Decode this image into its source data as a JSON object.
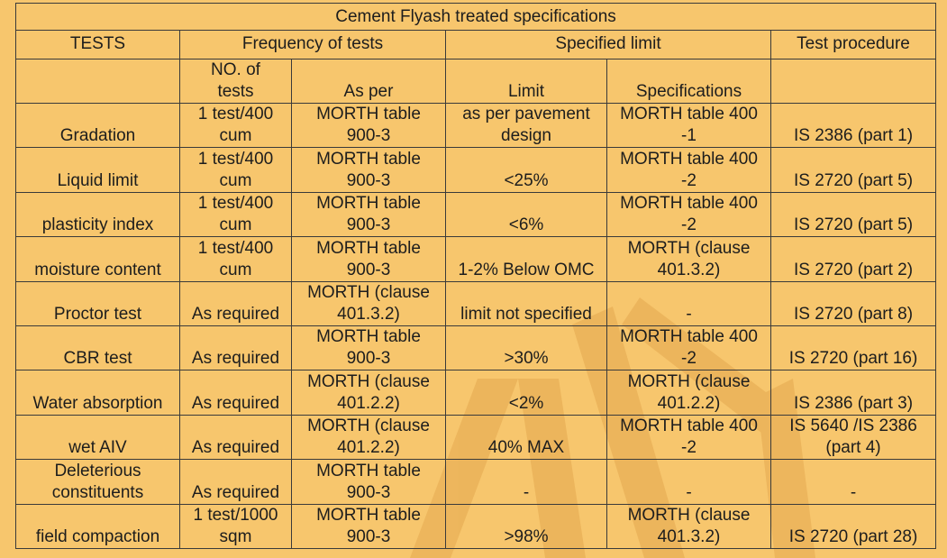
{
  "title": "Cement Flyash treated  specifications",
  "headers": {
    "tests": "TESTS",
    "frequency": "Frequency of tests",
    "specified_limit": "Specified limit",
    "test_procedure": "Test procedure"
  },
  "subheaders": {
    "no_of_tests": "NO. of\ntests",
    "as_per": "As per",
    "limit": "Limit",
    "specifications": "Specifications",
    "blank_1": "",
    "blank_2": ""
  },
  "rows": [
    {
      "test": "Gradation",
      "no_of_tests": "1 test/400\ncum",
      "as_per": "MORTH table\n900-3",
      "limit": "as per pavement\ndesign",
      "specifications": "MORTH table 400\n-1",
      "procedure": "IS 2386 (part 1)"
    },
    {
      "test": "Liquid limit",
      "no_of_tests": "1 test/400\ncum",
      "as_per": "MORTH table\n900-3",
      "limit": "<25%",
      "specifications": "MORTH table 400\n-2",
      "procedure": "IS 2720 (part 5)"
    },
    {
      "test": "plasticity index",
      "no_of_tests": "1 test/400\ncum",
      "as_per": "MORTH table\n900-3",
      "limit": "<6%",
      "specifications": "MORTH table 400\n-2",
      "procedure": "IS 2720 (part 5)"
    },
    {
      "test": "moisture content",
      "no_of_tests": "1 test/400\ncum",
      "as_per": "MORTH table\n900-3",
      "limit": "1-2% Below OMC",
      "specifications": "MORTH (clause\n401.3.2)",
      "procedure": "IS 2720 (part 2)"
    },
    {
      "test": "Proctor test",
      "no_of_tests": "As required",
      "as_per": "MORTH (clause\n401.3.2)",
      "limit": "limit not specified",
      "specifications": "-",
      "procedure": "IS 2720 (part 8)"
    },
    {
      "test": "CBR test",
      "no_of_tests": "As required",
      "as_per": "MORTH table\n900-3",
      "limit": ">30%",
      "specifications": "MORTH table 400\n-2",
      "procedure": "IS 2720 (part 16)"
    },
    {
      "test": "Water absorption",
      "no_of_tests": "As required",
      "as_per": "MORTH (clause\n401.2.2)",
      "limit": "<2%",
      "specifications": "MORTH (clause\n401.2.2)",
      "procedure": "IS 2386 (part 3)"
    },
    {
      "test": "wet AIV",
      "no_of_tests": "As required",
      "as_per": "MORTH (clause\n401.2.2)",
      "limit": "40% MAX",
      "specifications": "MORTH table 400\n-2",
      "procedure": "IS 5640 /IS 2386\n(part 4)"
    },
    {
      "test": "Deleterious\nconstituents",
      "no_of_tests": "As required",
      "as_per": "MORTH table\n900-3",
      "limit": "-",
      "specifications": "-",
      "procedure": "-"
    },
    {
      "test": "field compaction",
      "no_of_tests": "1 test/1000\nsqm",
      "as_per": "MORTH table\n900-3",
      "limit": ">98%",
      "specifications": "MORTH (clause\n401.3.2)",
      "procedure": "IS 2720 (part 28)"
    }
  ],
  "colors": {
    "background": "#f7c66d",
    "grid": "#3a3a3a",
    "text": "#1d1d1d",
    "watermark": "#e9b45a"
  }
}
